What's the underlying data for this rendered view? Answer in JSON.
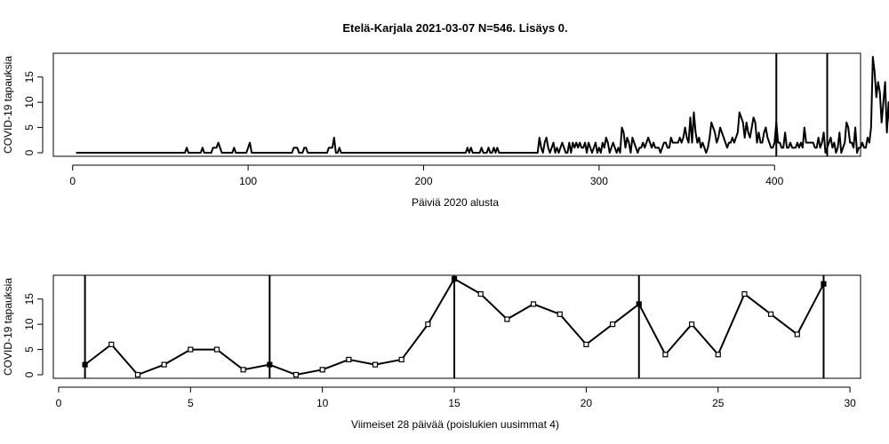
{
  "chart_data": [
    {
      "type": "line",
      "title": "Etelä-Karjala 2021-03-07 N=546. Lisäys 0.",
      "xlabel": "Päiviä 2020 alusta",
      "ylabel": "COVID-19 tapauksia",
      "xlim": [
        -11,
        449
      ],
      "ylim": [
        0,
        19
      ],
      "xticks": [
        0,
        100,
        200,
        300,
        400
      ],
      "yticks": [
        0,
        5,
        10,
        15
      ],
      "vlines": [
        401,
        430
      ],
      "x_start": 2,
      "values": [
        0,
        0,
        0,
        0,
        0,
        0,
        0,
        0,
        0,
        0,
        0,
        0,
        0,
        0,
        0,
        0,
        0,
        0,
        0,
        0,
        0,
        0,
        0,
        0,
        0,
        0,
        0,
        0,
        0,
        0,
        0,
        0,
        0,
        0,
        0,
        0,
        0,
        0,
        0,
        0,
        0,
        0,
        0,
        0,
        0,
        0,
        0,
        0,
        0,
        0,
        0,
        0,
        0,
        0,
        0,
        0,
        0,
        0,
        0,
        0,
        0,
        0,
        0,
        1,
        0,
        0,
        0,
        0,
        0,
        0,
        0,
        0,
        1,
        0,
        0,
        0,
        0,
        0,
        1,
        1,
        1,
        2,
        1,
        0,
        0,
        0,
        0,
        0,
        0,
        0,
        1,
        0,
        0,
        0,
        0,
        0,
        0,
        0,
        1,
        2,
        0,
        0,
        0,
        0,
        0,
        0,
        0,
        0,
        0,
        0,
        0,
        0,
        0,
        0,
        0,
        0,
        0,
        0,
        0,
        0,
        0,
        0,
        0,
        0,
        1,
        1,
        1,
        0,
        0,
        0,
        1,
        1,
        0,
        0,
        0,
        0,
        0,
        0,
        0,
        0,
        0,
        0,
        0,
        0,
        1,
        1,
        1,
        3,
        0,
        0,
        1,
        0,
        0,
        0,
        0,
        0,
        0,
        0,
        0,
        0,
        0,
        0,
        0,
        0,
        0,
        0,
        0,
        0,
        0,
        0,
        0,
        0,
        0,
        0,
        0,
        0,
        0,
        0,
        0,
        0,
        0,
        0,
        0,
        0,
        0,
        0,
        0,
        0,
        0,
        0,
        0,
        0,
        0,
        0,
        0,
        0,
        0,
        0,
        0,
        0,
        0,
        0,
        0,
        0,
        0,
        0,
        0,
        0,
        0,
        0,
        0,
        0,
        0,
        0,
        0,
        0,
        0,
        0,
        0,
        0,
        0,
        0,
        0,
        1,
        0,
        1,
        0,
        0,
        0,
        0,
        0,
        1,
        0,
        0,
        0,
        1,
        0,
        0,
        1,
        0,
        1,
        0,
        0,
        0,
        0,
        0,
        0,
        0,
        0,
        0,
        0,
        0,
        0,
        0,
        0,
        0,
        0,
        0,
        0,
        0,
        0,
        0,
        0,
        0,
        3,
        1,
        0,
        2,
        3,
        1,
        0,
        1,
        2,
        0,
        1,
        0,
        1,
        2,
        1,
        0,
        0,
        2,
        0,
        2,
        1,
        2,
        1,
        2,
        1,
        1,
        2,
        0,
        2,
        1,
        0,
        1,
        2,
        0,
        1,
        0,
        2,
        1,
        3,
        2,
        0,
        1,
        2,
        1,
        0,
        1,
        0,
        5,
        4,
        1,
        3,
        2,
        0,
        3,
        2,
        1,
        0,
        1,
        1,
        2,
        1,
        2,
        3,
        2,
        1,
        2,
        1,
        1,
        1,
        0,
        1,
        2,
        2,
        1,
        1,
        3,
        2,
        2,
        2,
        2,
        3,
        2,
        3,
        5,
        3,
        2,
        7,
        2,
        8,
        4,
        2,
        3,
        1,
        2,
        1,
        0,
        1,
        3,
        6,
        5,
        4,
        2,
        3,
        5,
        4,
        3,
        2,
        1,
        2,
        2,
        3,
        2,
        3,
        4,
        8,
        7,
        6,
        3,
        6,
        4,
        3,
        5,
        7,
        6,
        2,
        4,
        2,
        2,
        4,
        5,
        3,
        2,
        1,
        1,
        2,
        6,
        2,
        2,
        1,
        1,
        4,
        1,
        1,
        2,
        1,
        1,
        1,
        2,
        1,
        2,
        1,
        5,
        2,
        2,
        2,
        2,
        2,
        1,
        1,
        3,
        1,
        2,
        4,
        0,
        1,
        2,
        3,
        1,
        2,
        0,
        1,
        4,
        0,
        1,
        2,
        6,
        5,
        2,
        2,
        1,
        5,
        0,
        1,
        1,
        2,
        1,
        1,
        3,
        2,
        5,
        19,
        16,
        11,
        14,
        12,
        6,
        10,
        14,
        4,
        10,
        4,
        16,
        12,
        8,
        18
      ]
    },
    {
      "type": "line",
      "title": "",
      "xlabel": "Viimeiset 28 päivää (poislukien uusimmat 4)",
      "ylabel": "COVID-19 tapauksia",
      "xlim": [
        -0.2,
        30.4
      ],
      "ylim": [
        0,
        19
      ],
      "xticks": [
        0,
        5,
        10,
        15,
        20,
        25,
        30
      ],
      "yticks": [
        0,
        5,
        10,
        15
      ],
      "vlines": [
        1,
        8,
        15,
        22,
        29
      ],
      "x": [
        1,
        2,
        3,
        4,
        5,
        6,
        7,
        8,
        9,
        10,
        11,
        12,
        13,
        14,
        15,
        16,
        17,
        18,
        19,
        20,
        21,
        22,
        23,
        24,
        25,
        26,
        27,
        28,
        29
      ],
      "values": [
        2,
        6,
        0,
        2,
        5,
        5,
        1,
        2,
        0,
        1,
        3,
        2,
        3,
        10,
        19,
        16,
        11,
        14,
        12,
        6,
        10,
        14,
        4,
        10,
        4,
        16,
        12,
        8,
        18
      ],
      "filled_points": [
        1,
        8,
        15,
        22,
        29
      ]
    }
  ]
}
